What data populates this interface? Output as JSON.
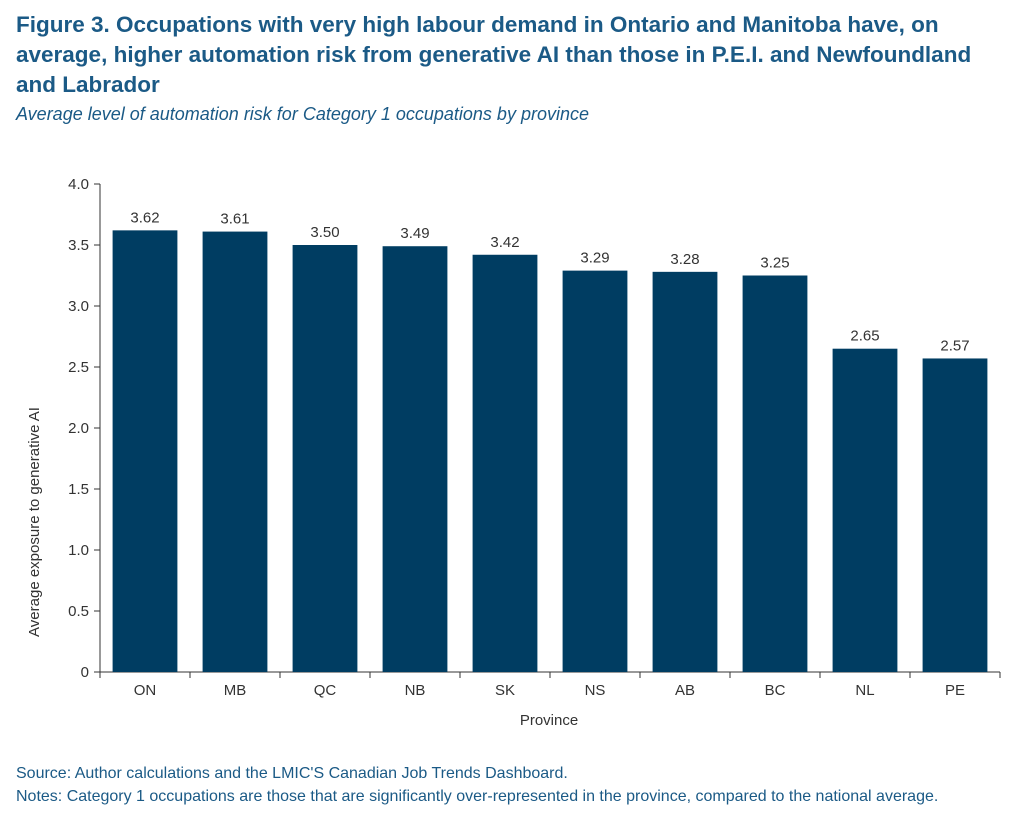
{
  "title": "Figure 3. Occupations with very high labour demand in Ontario and Manitoba have, on average, higher automation risk from generative AI than those in P.E.I. and Newfoundland and Labrador",
  "subtitle": "Average level of automation risk for Category 1 occupations by province",
  "source": "Source: Author calculations and the LMIC'S Canadian Job Trends Dashboard.",
  "notes": "Notes: Category 1 occupations are those that are significantly over-represented in the province, compared to the national average.",
  "colors": {
    "bar": "#003d62",
    "text": "#1b5a86",
    "axis": "#333333"
  },
  "chart_data": {
    "type": "bar",
    "categories": [
      "ON",
      "MB",
      "QC",
      "NB",
      "SK",
      "NS",
      "AB",
      "BC",
      "NL",
      "PE"
    ],
    "values": [
      3.62,
      3.61,
      3.5,
      3.49,
      3.42,
      3.29,
      3.28,
      3.25,
      2.65,
      2.57
    ],
    "value_labels": [
      "3.62",
      "3.61",
      "3.50",
      "3.49",
      "3.42",
      "3.29",
      "3.28",
      "3.25",
      "2.65",
      "2.57"
    ],
    "xlabel": "Province",
    "ylabel": "Average exposure to generative AI",
    "ylim": [
      0,
      4.0
    ],
    "yticks": [
      "0",
      "0.5",
      "1.0",
      "1.5",
      "2.0",
      "2.5",
      "3.0",
      "3.5",
      "4.0"
    ],
    "grid": false,
    "legend": "none"
  }
}
